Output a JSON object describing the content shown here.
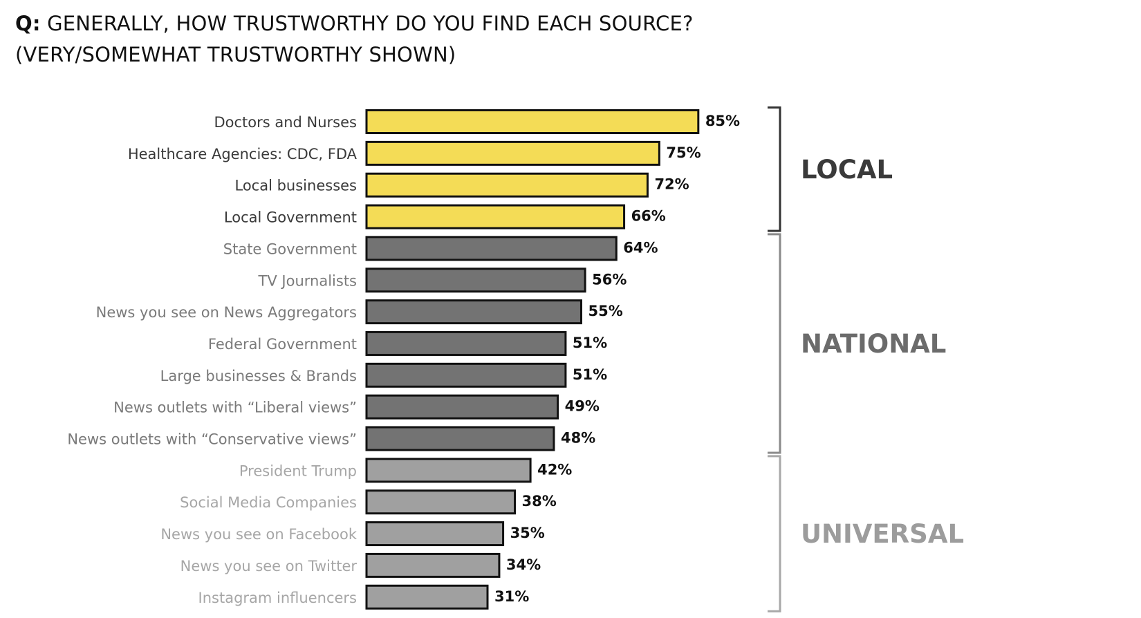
{
  "title": {
    "prefix": "Q:",
    "line1": "GENERALLY, HOW TRUSTWORTHY DO YOU FIND EACH SOURCE?",
    "line2": "(VERY/SOMEWHAT TRUSTWORTHY SHOWN)"
  },
  "chart_data": {
    "type": "bar",
    "orientation": "horizontal",
    "title": "Q: GENERALLY, HOW TRUSTWORTHY DO YOU FIND EACH SOURCE? (VERY/SOMEWHAT TRUSTWORTHY SHOWN)",
    "categories": [
      "Doctors and Nurses",
      "Healthcare Agencies: CDC, FDA",
      "Local businesses",
      "Local Government",
      "State Government",
      "TV Journalists",
      "News you see on News Aggregators",
      "Federal Government",
      "Large businesses & Brands",
      "News outlets with “Liberal views”",
      "News outlets with “Conservative views”",
      "President Trump",
      "Social Media Companies",
      "News you see on Facebook",
      "News you see on Twitter",
      "Instagram influencers"
    ],
    "values": [
      85,
      75,
      72,
      66,
      64,
      56,
      55,
      51,
      51,
      49,
      48,
      42,
      38,
      35,
      34,
      31
    ],
    "value_labels": [
      "85%",
      "75%",
      "72%",
      "66%",
      "64%",
      "56%",
      "55%",
      "51%",
      "51%",
      "49%",
      "48%",
      "42%",
      "38%",
      "35%",
      "34%",
      "31%"
    ],
    "unit": "%",
    "xlim": [
      0,
      100
    ],
    "grid": false,
    "legend": "none",
    "groups": [
      {
        "name": "LOCAL",
        "start": 0,
        "end": 3,
        "bar_color": "#f4dc56",
        "label_color": "#3a3a3a",
        "text_color": "#3a3a3a",
        "bracket_color": "#333333"
      },
      {
        "name": "NATIONAL",
        "start": 4,
        "end": 10,
        "bar_color": "#737373",
        "label_color": "#6b6b6b",
        "text_color": "#7a7a7a",
        "bracket_color": "#8a8a8a"
      },
      {
        "name": "UNIVERSAL",
        "start": 11,
        "end": 15,
        "bar_color": "#a0a0a0",
        "label_color": "#9c9c9c",
        "text_color": "#a6a6a6",
        "bracket_color": "#a8a8a8"
      }
    ]
  }
}
